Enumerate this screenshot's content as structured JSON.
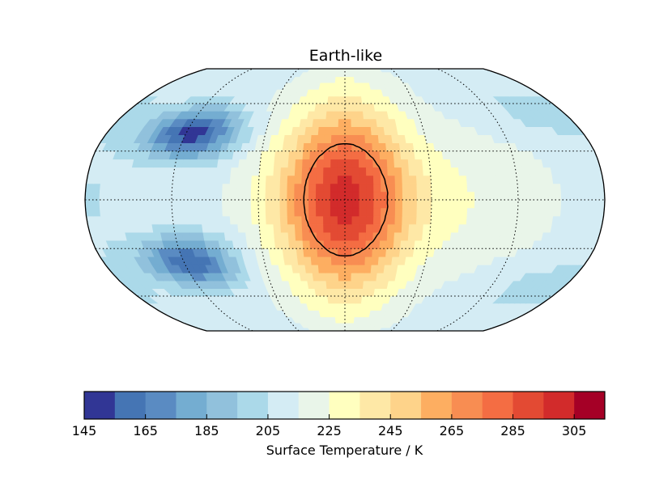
{
  "chart_data": {
    "type": "heatmap",
    "projection": "robinson",
    "title": "Earth-like",
    "colorbar": {
      "label": "Surface Temperature / K",
      "levels": [
        145,
        155,
        165,
        175,
        185,
        195,
        205,
        215,
        225,
        235,
        245,
        255,
        265,
        275,
        285,
        295,
        305,
        315
      ],
      "tick_values": [
        145,
        165,
        185,
        205,
        225,
        245,
        265,
        285,
        305
      ],
      "tick_labels": [
        "145",
        "165",
        "185",
        "205",
        "225",
        "245",
        "265",
        "285",
        "305"
      ],
      "colors": [
        "#313695",
        "#4575b4",
        "#5a8bc2",
        "#74add1",
        "#91c1dc",
        "#abd9e9",
        "#d4ecf4",
        "#e9f5e9",
        "#ffffbf",
        "#fee8a6",
        "#fed38a",
        "#fdae61",
        "#f88d52",
        "#f46d43",
        "#e34a33",
        "#d22b2b",
        "#a50026"
      ],
      "orientation": "horizontal",
      "placement": "bottom"
    },
    "contour_level_K": 273,
    "substellar_point_deg": {
      "lon": 0,
      "lat": 0
    },
    "features": [
      {
        "name": "substellar hot spot",
        "lon_deg": 0,
        "lat_deg": 0,
        "peak_K": 300
      },
      {
        "name": "north-west cold gyre",
        "lon_deg": -115,
        "lat_deg": 40,
        "min_K": 150
      },
      {
        "name": "south-west cold gyre",
        "lon_deg": -115,
        "lat_deg": -38,
        "min_K": 160
      },
      {
        "name": "night-side equatorial band",
        "lon_deg": 180,
        "lat_deg": 0,
        "approx_K": 212
      },
      {
        "name": "east limb warm tongue",
        "lon_deg": 95,
        "lat_deg": 0,
        "approx_K": 223
      }
    ],
    "gridlines": {
      "meridians_deg": [
        -180,
        -120,
        -60,
        0,
        60,
        120,
        180
      ],
      "parallels_deg": [
        -60,
        -30,
        0,
        30,
        60
      ],
      "style": "dotted"
    }
  }
}
